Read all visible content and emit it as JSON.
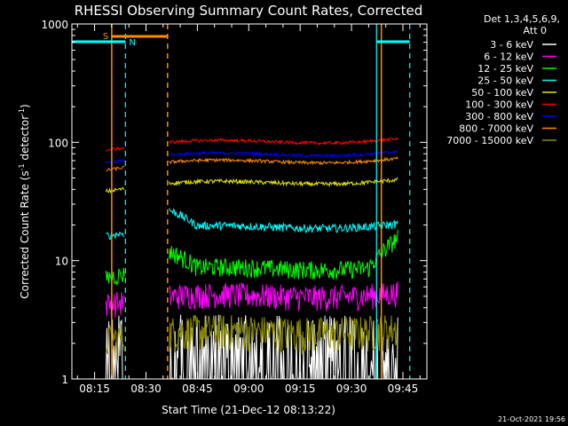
{
  "chart_data": {
    "type": "line",
    "title": "RHESSI Observing Summary Count Rates, Corrected",
    "xlabel": "Start Time (21-Dec-12 08:13:22)",
    "ylabel_main": "Corrected Count Rate (s",
    "ylabel_sup1": "-1",
    "ylabel_mid": " detector",
    "ylabel_sup2": "-1",
    "ylabel_end": ")",
    "footer": "21-Oct-2021 19:56",
    "yscale": "log",
    "ylim": [
      1,
      1000
    ],
    "xlim_minutes": [
      8.37,
      112
    ],
    "xticks": [
      {
        "label": "08:15",
        "minutes": 15
      },
      {
        "label": "08:30",
        "minutes": 30
      },
      {
        "label": "08:45",
        "minutes": 45
      },
      {
        "label": "09:00",
        "minutes": 60
      },
      {
        "label": "09:15",
        "minutes": 75
      },
      {
        "label": "09:30",
        "minutes": 90
      },
      {
        "label": "09:45",
        "minutes": 105
      }
    ],
    "yticks": [
      {
        "label": "1",
        "value": 1
      },
      {
        "label": "10",
        "value": 10
      },
      {
        "label": "100",
        "value": 100
      },
      {
        "label": "1000",
        "value": 1000
      }
    ],
    "legend": {
      "header1": "Det 1,3,4,5,6,9,",
      "header2": "Att 0",
      "placement": "top-right-outside"
    },
    "series": [
      {
        "name": "3 - 6 keV",
        "color": "#ffffff"
      },
      {
        "name": "6 - 12 keV",
        "color": "#ff00ff"
      },
      {
        "name": "12 - 25 keV",
        "color": "#00ff00"
      },
      {
        "name": "25 - 50 keV",
        "color": "#00ffff"
      },
      {
        "name": "50 - 100 keV",
        "color": "#e6e600"
      },
      {
        "name": "100 - 300 keV",
        "color": "#ff0000"
      },
      {
        "name": "300 - 800 keV",
        "color": "#0000ff"
      },
      {
        "name": "800 - 7000 keV",
        "color": "#ff8c00"
      },
      {
        "name": "7000 - 15000 keV",
        "color": "#8b8b00"
      }
    ],
    "annotations": [
      {
        "label": "S",
        "color": "#ff8c00",
        "minutes": 20.0
      },
      {
        "label": "N",
        "color": "#00ffff",
        "minutes": 24.0
      }
    ],
    "orange_vlines_minutes": [
      20.0,
      36.3,
      98.7
    ],
    "cyan_vlines_minutes": [
      24.0,
      97.3,
      107.0
    ],
    "gap_minutes": [
      24.0,
      36.8
    ]
  }
}
